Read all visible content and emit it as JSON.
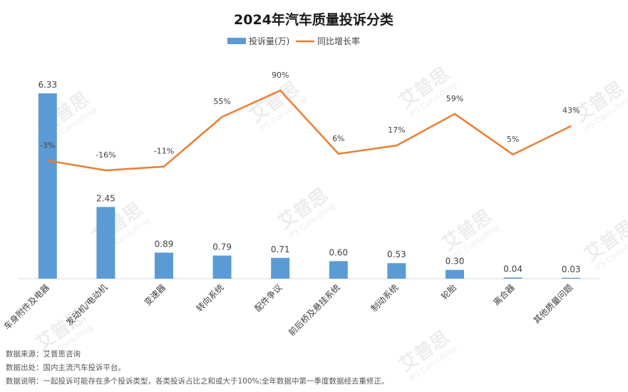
{
  "chart_data": {
    "type": "bar",
    "title": "2024年汽车质量投诉分类",
    "categories": [
      "车身附件及电器",
      "发动机/电动机",
      "变速器",
      "转向系统",
      "配件争议",
      "前后桥及悬挂系统",
      "制动系统",
      "轮胎",
      "离合器",
      "其他质量问题"
    ],
    "series": [
      {
        "name": "投诉量(万)",
        "type": "bar",
        "color": "#5b9bd5",
        "values": [
          6.33,
          2.45,
          0.89,
          0.79,
          0.71,
          0.6,
          0.53,
          0.3,
          0.04,
          0.03
        ],
        "labels": [
          "6.33",
          "2.45",
          "0.89",
          "0.79",
          "0.71",
          "0.60",
          "0.53",
          "0.30",
          "0.04",
          "0.03"
        ]
      },
      {
        "name": "同比增长率",
        "type": "line",
        "color": "#ed7d31",
        "values": [
          -3,
          -16,
          -11,
          55,
          90,
          6,
          17,
          59,
          5,
          43
        ],
        "labels": [
          "-3%",
          "-16%",
          "-11%",
          "55%",
          "90%",
          "6%",
          "17%",
          "59%",
          "5%",
          "43%"
        ]
      }
    ],
    "legend_position": "top-center",
    "grid": false
  },
  "notes": [
    "数据来源：艾普思咨询",
    "数据出处：国内主流汽车投诉平台。",
    "数据说明：一起投诉可能存在多个投诉类型，各类投诉占比之和或大于100%;全年数据中第一季度数据经去重修正。"
  ],
  "watermark": {
    "brand": "艾普思",
    "sub": "iPS Consulting"
  }
}
